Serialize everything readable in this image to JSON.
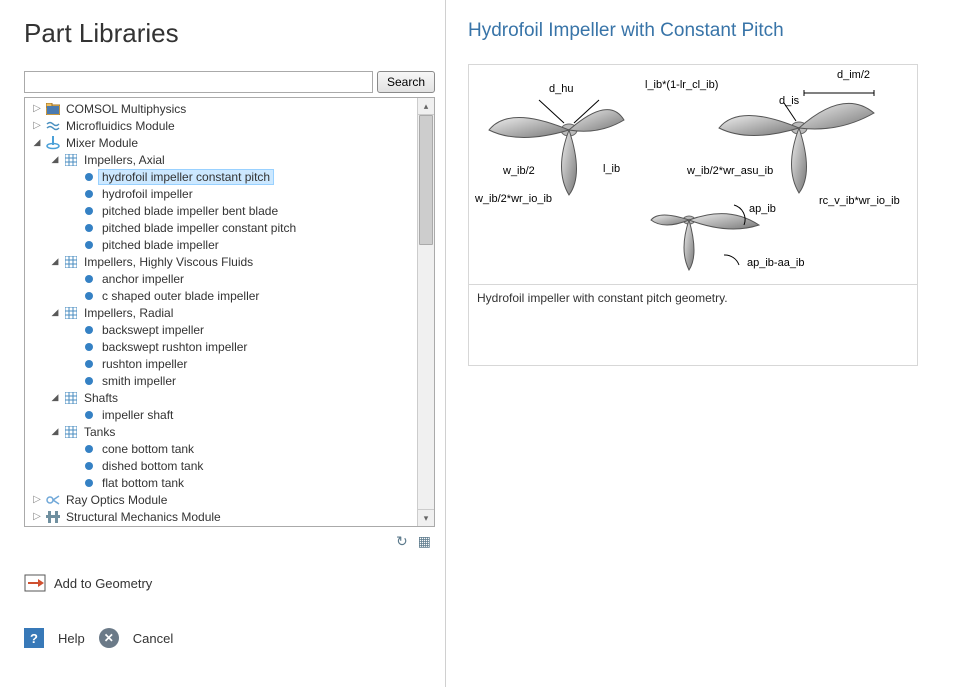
{
  "left": {
    "title": "Part Libraries",
    "searchButton": "Search",
    "addToGeometry": "Add to Geometry",
    "help": "Help",
    "cancel": "Cancel"
  },
  "right": {
    "title": "Hydrofoil Impeller with Constant Pitch",
    "caption": "Hydrofoil impeller with constant pitch geometry.",
    "labels": {
      "d_hu": "d_hu",
      "l_ib": "l_ib*(1-lr_cl_ib)",
      "d_im": "d_im/2",
      "d_is": "d_is",
      "w_ib2": "w_ib/2",
      "lib": "l_ib",
      "w_asu": "w_ib/2*wr_asu_ib",
      "w_io": "w_ib/2*wr_io_ib",
      "ap_ib": "ap_ib",
      "rc_v": "rc_v_ib*wr_io_ib",
      "ap_aa": "ap_ib-aa_ib"
    }
  },
  "tree": [
    {
      "level": 0,
      "toggle": "collapsed",
      "icon": "folder",
      "label": "COMSOL Multiphysics"
    },
    {
      "level": 0,
      "toggle": "collapsed",
      "icon": "wave",
      "label": "Microfluidics Module"
    },
    {
      "level": 0,
      "toggle": "expanded",
      "icon": "mixer",
      "label": "Mixer Module"
    },
    {
      "level": 1,
      "toggle": "expanded",
      "icon": "grid",
      "label": "Impellers, Axial"
    },
    {
      "level": 2,
      "toggle": "none",
      "icon": "dot",
      "label": "hydrofoil impeller constant pitch",
      "selected": true
    },
    {
      "level": 2,
      "toggle": "none",
      "icon": "dot",
      "label": "hydrofoil impeller"
    },
    {
      "level": 2,
      "toggle": "none",
      "icon": "dot",
      "label": "pitched blade impeller bent blade"
    },
    {
      "level": 2,
      "toggle": "none",
      "icon": "dot",
      "label": "pitched blade impeller constant pitch"
    },
    {
      "level": 2,
      "toggle": "none",
      "icon": "dot",
      "label": "pitched blade impeller"
    },
    {
      "level": 1,
      "toggle": "expanded",
      "icon": "grid",
      "label": "Impellers, Highly Viscous Fluids"
    },
    {
      "level": 2,
      "toggle": "none",
      "icon": "dot",
      "label": "anchor impeller"
    },
    {
      "level": 2,
      "toggle": "none",
      "icon": "dot",
      "label": "c shaped outer blade impeller"
    },
    {
      "level": 1,
      "toggle": "expanded",
      "icon": "grid",
      "label": "Impellers, Radial"
    },
    {
      "level": 2,
      "toggle": "none",
      "icon": "dot",
      "label": "backswept impeller"
    },
    {
      "level": 2,
      "toggle": "none",
      "icon": "dot",
      "label": "backswept rushton impeller"
    },
    {
      "level": 2,
      "toggle": "none",
      "icon": "dot",
      "label": "rushton impeller"
    },
    {
      "level": 2,
      "toggle": "none",
      "icon": "dot",
      "label": "smith impeller"
    },
    {
      "level": 1,
      "toggle": "expanded",
      "icon": "grid",
      "label": "Shafts"
    },
    {
      "level": 2,
      "toggle": "none",
      "icon": "dot",
      "label": "impeller shaft"
    },
    {
      "level": 1,
      "toggle": "expanded",
      "icon": "grid",
      "label": "Tanks"
    },
    {
      "level": 2,
      "toggle": "none",
      "icon": "dot",
      "label": "cone bottom tank"
    },
    {
      "level": 2,
      "toggle": "none",
      "icon": "dot",
      "label": "dished bottom tank"
    },
    {
      "level": 2,
      "toggle": "none",
      "icon": "dot",
      "label": "flat bottom tank"
    },
    {
      "level": 0,
      "toggle": "collapsed",
      "icon": "ray",
      "label": "Ray Optics Module"
    },
    {
      "level": 0,
      "toggle": "collapsed",
      "icon": "struct",
      "label": "Structural Mechanics Module"
    }
  ]
}
